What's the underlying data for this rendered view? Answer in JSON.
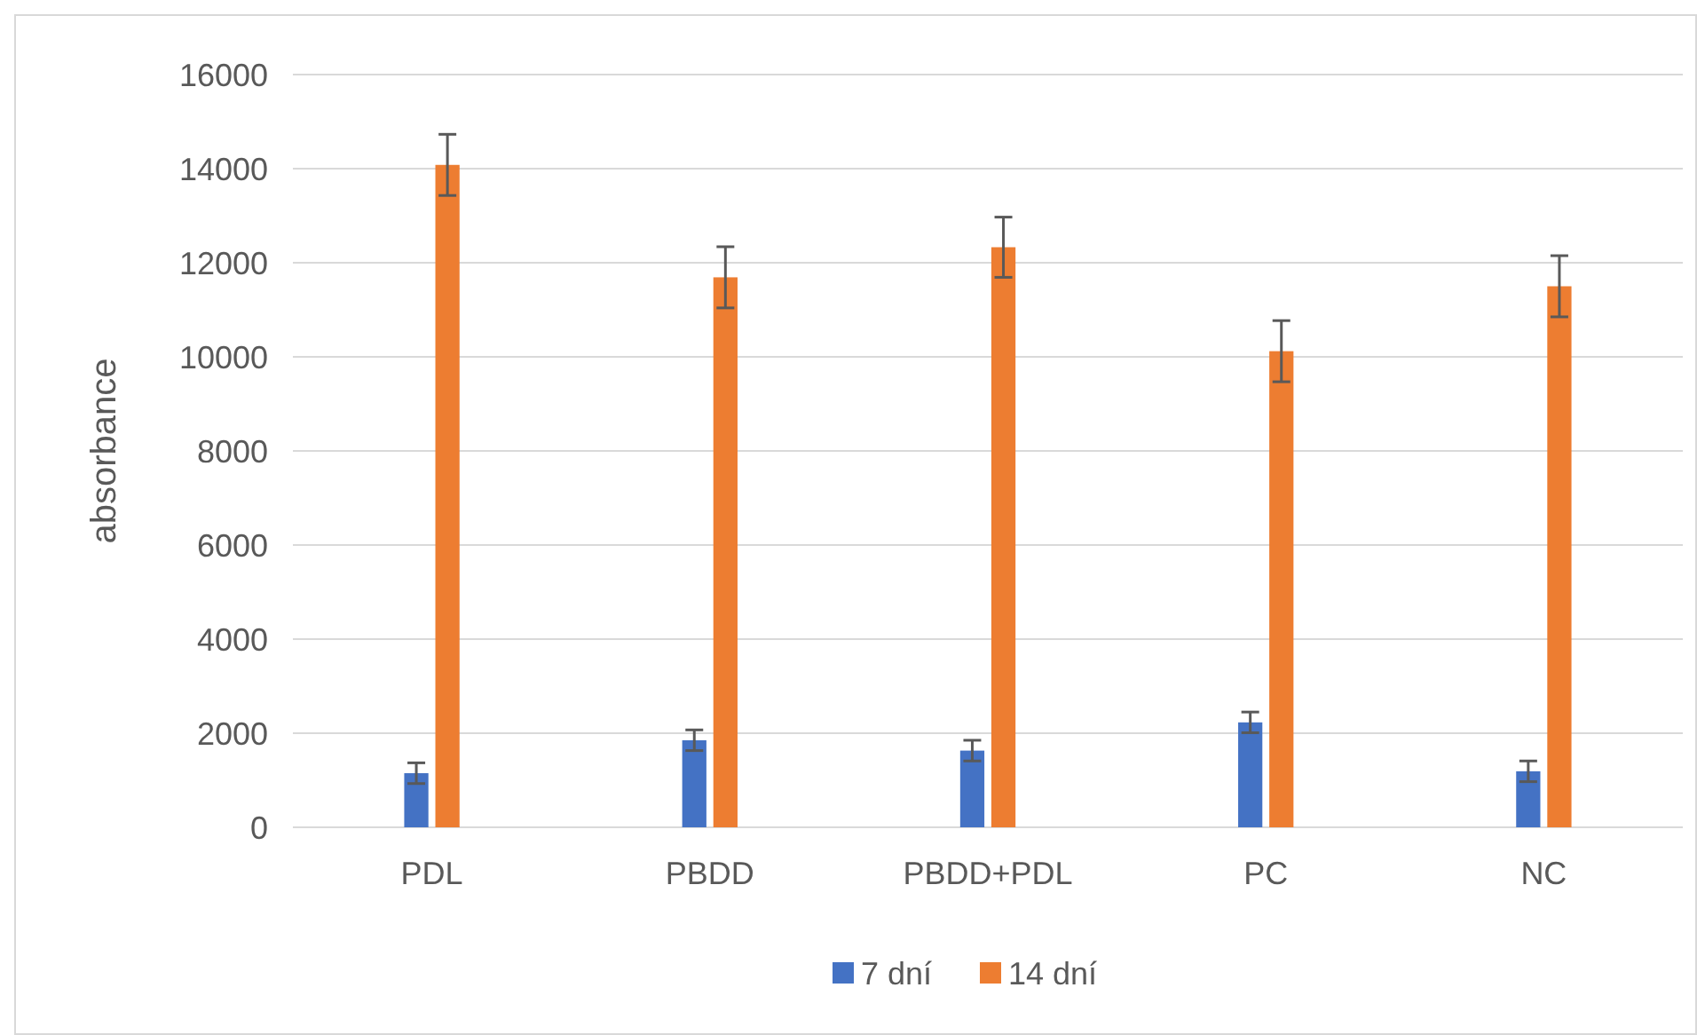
{
  "chart_data": {
    "type": "bar",
    "ylabel": "absorbance",
    "categories": [
      "PDL",
      "PBDD",
      "PBDD+PDL",
      "PC",
      "NC"
    ],
    "series": [
      {
        "name": "7 dní",
        "color": "#4472c4",
        "values": [
          1150,
          1850,
          1630,
          2230,
          1190
        ],
        "errors": [
          220,
          220,
          220,
          220,
          220
        ]
      },
      {
        "name": "14 dní",
        "color": "#ed7d31",
        "values": [
          14080,
          11690,
          12330,
          10120,
          11500
        ],
        "errors": [
          650,
          650,
          640,
          650,
          650
        ]
      }
    ],
    "ylim": [
      0,
      16000
    ],
    "yticks": [
      0,
      2000,
      4000,
      6000,
      8000,
      10000,
      12000,
      14000,
      16000
    ],
    "grid": "y",
    "legend": "bottom"
  }
}
